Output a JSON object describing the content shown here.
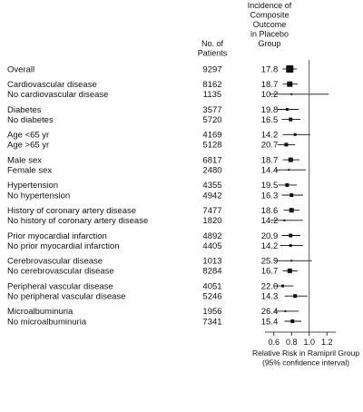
{
  "chart_data": {
    "type": "forest",
    "headers": {
      "patients": [
        "No. of",
        "Patients"
      ],
      "incidence": [
        "Incidence of",
        "Composite",
        "Outcome",
        "in Placebo",
        "Group"
      ]
    },
    "xaxis": {
      "ticks": [
        0.6,
        0.8,
        1.0,
        1.2
      ],
      "tick_labels": [
        "0.6",
        "0.8",
        "1.0",
        "1.2"
      ],
      "xlim": [
        0.5,
        1.3
      ],
      "reference_line": 1.0,
      "label": [
        "Relative Risk in Ramipril Group",
        "(95% confidence interval)"
      ]
    },
    "rows": [
      {
        "label": "Overall",
        "n": "9297",
        "inc": "17.8",
        "rr": 0.78,
        "lo": 0.7,
        "hi": 0.86,
        "size": 8
      },
      {
        "label": "Cardiovascular disease",
        "n": "8162",
        "inc": "18.7",
        "rr": 0.78,
        "lo": 0.7,
        "hi": 0.87,
        "size": 6
      },
      {
        "label": "No cardiovascular disease",
        "n": "1135",
        "inc": "10.2",
        "rr": 0.8,
        "lo": 0.55,
        "hi": 1.22,
        "size": 2
      },
      {
        "label": "Diabetes",
        "n": "3577",
        "inc": "19.8",
        "rr": 0.75,
        "lo": 0.64,
        "hi": 0.88,
        "size": 3
      },
      {
        "label": "No diabetes",
        "n": "5720",
        "inc": "16.5",
        "rr": 0.79,
        "lo": 0.69,
        "hi": 0.9,
        "size": 4
      },
      {
        "label": "Age <65 yr",
        "n": "4169",
        "inc": "14.2",
        "rr": 0.84,
        "lo": 0.7,
        "hi": 1.01,
        "size": 3
      },
      {
        "label": "Age >65 yr",
        "n": "5128",
        "inc": "20.7",
        "rr": 0.74,
        "lo": 0.64,
        "hi": 0.84,
        "size": 4
      },
      {
        "label": "Male sex",
        "n": "6817",
        "inc": "18.7",
        "rr": 0.79,
        "lo": 0.7,
        "hi": 0.89,
        "size": 5
      },
      {
        "label": "Female sex",
        "n": "2480",
        "inc": "14.4",
        "rr": 0.77,
        "lo": 0.62,
        "hi": 0.96,
        "size": 2
      },
      {
        "label": "Hypertension",
        "n": "4355",
        "inc": "19.5",
        "rr": 0.75,
        "lo": 0.65,
        "hi": 0.86,
        "size": 4
      },
      {
        "label": "No hypertension",
        "n": "4942",
        "inc": "16.3",
        "rr": 0.8,
        "lo": 0.69,
        "hi": 0.93,
        "size": 4
      },
      {
        "label": "History of coronary artery disease",
        "n": "7477",
        "inc": "18.6",
        "rr": 0.8,
        "lo": 0.71,
        "hi": 0.89,
        "size": 5
      },
      {
        "label": "No history of coronary artery disease",
        "n": "1820",
        "inc": "14.2",
        "rr": 0.72,
        "lo": 0.56,
        "hi": 0.93,
        "size": 2
      },
      {
        "label": "Prior myocardial infarction",
        "n": "4892",
        "inc": "20.9",
        "rr": 0.79,
        "lo": 0.69,
        "hi": 0.9,
        "size": 4
      },
      {
        "label": "No prior myocardial infarction",
        "n": "4405",
        "inc": "14.2",
        "rr": 0.79,
        "lo": 0.67,
        "hi": 0.93,
        "size": 3
      },
      {
        "label": "Cerebrovascular disease",
        "n": "1013",
        "inc": "25.9",
        "rr": 0.8,
        "lo": 0.62,
        "hi": 1.03,
        "size": 2
      },
      {
        "label": "No cerebrovascular disease",
        "n": "8284",
        "inc": "16.7",
        "rr": 0.78,
        "lo": 0.7,
        "hi": 0.87,
        "size": 5
      },
      {
        "label": "Peripheral vascular disease",
        "n": "4051",
        "inc": "22.0",
        "rr": 0.7,
        "lo": 0.6,
        "hi": 0.82,
        "size": 3
      },
      {
        "label": "No peripheral vascular disease",
        "n": "5246",
        "inc": "14.3",
        "rr": 0.84,
        "lo": 0.72,
        "hi": 0.98,
        "size": 4
      },
      {
        "label": "Microalbuminuria",
        "n": "1956",
        "inc": "26.4",
        "rr": 0.73,
        "lo": 0.6,
        "hi": 0.88,
        "size": 2
      },
      {
        "label": "No microalbuminuria",
        "n": "7341",
        "inc": "15.4",
        "rr": 0.81,
        "lo": 0.72,
        "hi": 0.91,
        "size": 4
      }
    ]
  }
}
